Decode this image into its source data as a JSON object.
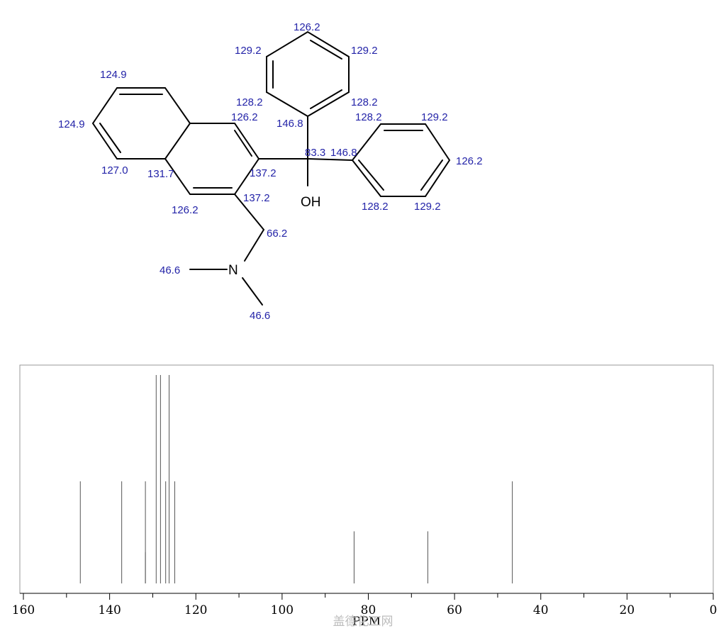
{
  "molecule": {
    "hydroxyl_label": "OH",
    "nitrogen_label": "N",
    "shift_labels": [
      {
        "id": "phA-para",
        "text": "126.2"
      },
      {
        "id": "phA-meta-left",
        "text": "129.2"
      },
      {
        "id": "phA-meta-right",
        "text": "129.2"
      },
      {
        "id": "phA-ortho-left",
        "text": "128.2"
      },
      {
        "id": "phA-ortho-right",
        "text": "128.2"
      },
      {
        "id": "phA-ipso",
        "text": "146.8"
      },
      {
        "id": "carbinol",
        "text": "83.3"
      },
      {
        "id": "phB-ipso",
        "text": "146.8"
      },
      {
        "id": "phB-ortho-top",
        "text": "128.2"
      },
      {
        "id": "phB-meta-top",
        "text": "129.2"
      },
      {
        "id": "phB-para",
        "text": "126.2"
      },
      {
        "id": "phB-meta-bottom",
        "text": "129.2"
      },
      {
        "id": "phB-ortho-bottom",
        "text": "128.2"
      },
      {
        "id": "naph-c5",
        "text": "124.9"
      },
      {
        "id": "naph-c6",
        "text": "124.9"
      },
      {
        "id": "naph-c7",
        "text": "127.0"
      },
      {
        "id": "naph-c4a",
        "text": "131.7"
      },
      {
        "id": "naph-c1",
        "text": "126.2"
      },
      {
        "id": "naph-c2",
        "text": "137.2"
      },
      {
        "id": "naph-c3",
        "text": "137.2"
      },
      {
        "id": "naph-c4",
        "text": "126.2"
      },
      {
        "id": "ch2",
        "text": "66.2"
      },
      {
        "id": "nme-left",
        "text": "46.6"
      },
      {
        "id": "nme-bottom",
        "text": "46.6"
      }
    ]
  },
  "chart_data": {
    "type": "bar",
    "xlabel": "PPM",
    "xlim": [
      160,
      0
    ],
    "x_reversed": true,
    "tick_labels": [
      "160",
      "140",
      "120",
      "100",
      "80",
      "60",
      "40",
      "20",
      "0"
    ],
    "ticks": [
      160,
      140,
      120,
      100,
      80,
      60,
      40,
      20,
      0
    ],
    "minor_ticks": [
      150,
      130,
      110,
      90,
      70,
      50,
      30,
      10
    ],
    "peaks": [
      {
        "ppm": 146.8,
        "intensity": 0.49
      },
      {
        "ppm": 137.2,
        "intensity": 0.49
      },
      {
        "ppm": 131.7,
        "intensity": 0.49
      },
      {
        "ppm": 131.7,
        "intensity": 0.15
      },
      {
        "ppm": 129.2,
        "intensity": 1.0
      },
      {
        "ppm": 128.2,
        "intensity": 1.0
      },
      {
        "ppm": 127.0,
        "intensity": 0.49
      },
      {
        "ppm": 126.2,
        "intensity": 1.0
      },
      {
        "ppm": 124.9,
        "intensity": 0.49
      },
      {
        "ppm": 83.3,
        "intensity": 0.25
      },
      {
        "ppm": 66.2,
        "intensity": 0.25
      },
      {
        "ppm": 46.6,
        "intensity": 0.49
      }
    ],
    "colors": {
      "peak": "#555555",
      "frame": "#999999",
      "axis": "#000000"
    }
  },
  "watermark": "盖德化工网"
}
